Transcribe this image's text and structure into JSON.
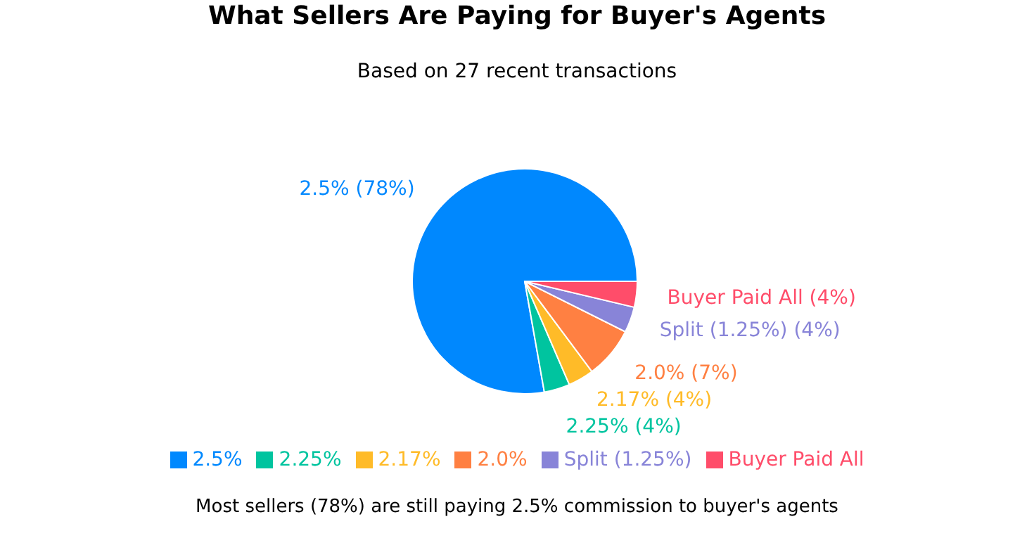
{
  "chart_data": {
    "type": "pie",
    "title": "What Sellers Are Paying for Buyer's Agents",
    "subtitle": "Based on 27 recent transactions",
    "categories": [
      "2.5%",
      "2.25%",
      "2.17%",
      "2.0%",
      "Split (1.25%)",
      "Buyer Paid All"
    ],
    "values": [
      77.78,
      3.7,
      3.7,
      7.41,
      3.7,
      3.7
    ],
    "colors": [
      "#0088fe",
      "#00c49f",
      "#ffbb28",
      "#ff8042",
      "#8884d8",
      "#ff4d6a"
    ],
    "value_labels": [
      "2.5% (78%)",
      "2.25% (4%)",
      "2.17% (4%)",
      "2.0% (7%)",
      "Split (1.25%) (4%)",
      "Buyer Paid All (4%)"
    ],
    "legend": "bottom",
    "annotations": [
      "Most sellers (78%) are still paying 2.5% commission to buyer's agents"
    ]
  }
}
